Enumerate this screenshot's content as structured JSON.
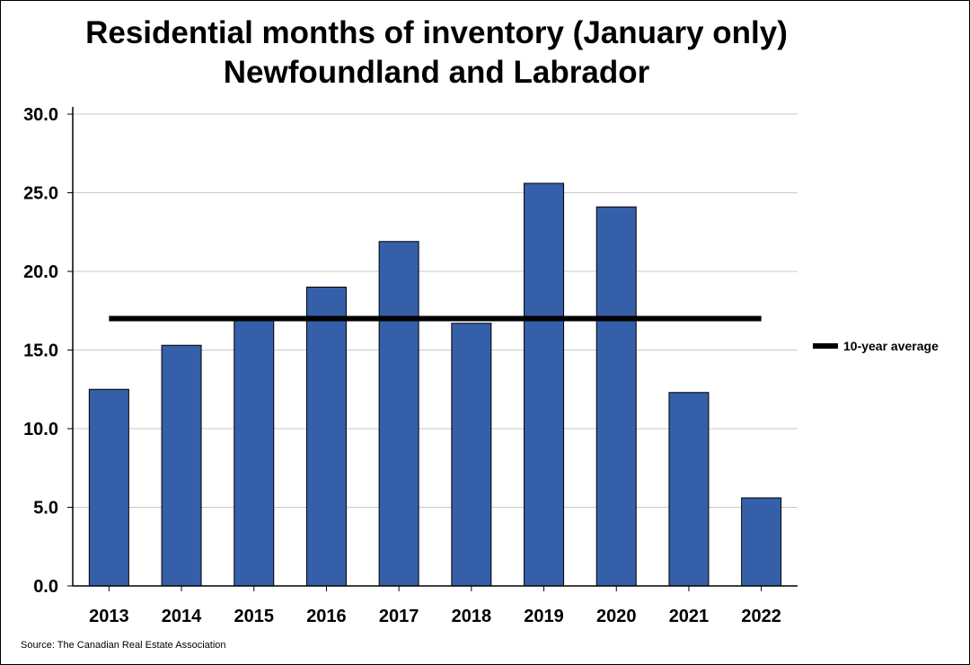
{
  "chart_data": {
    "type": "bar",
    "title": "Residential months of inventory (January only)",
    "subtitle": "Newfoundland and Labrador",
    "categories": [
      "2013",
      "2014",
      "2015",
      "2016",
      "2017",
      "2018",
      "2019",
      "2020",
      "2021",
      "2022"
    ],
    "values": [
      12.5,
      15.3,
      17.0,
      19.0,
      21.9,
      16.7,
      25.6,
      24.1,
      12.3,
      5.6
    ],
    "yticks": [
      "0.0",
      "5.0",
      "10.0",
      "15.0",
      "20.0",
      "25.0",
      "30.0"
    ],
    "ylim": [
      0,
      30
    ],
    "xlabel": "",
    "ylabel": "",
    "grid": true,
    "bar_color": "#355fa9",
    "average": {
      "name": "10-year average",
      "value": 17.0
    },
    "legend_placement": "right",
    "source": "Source: The Canadian Real Estate Association"
  }
}
